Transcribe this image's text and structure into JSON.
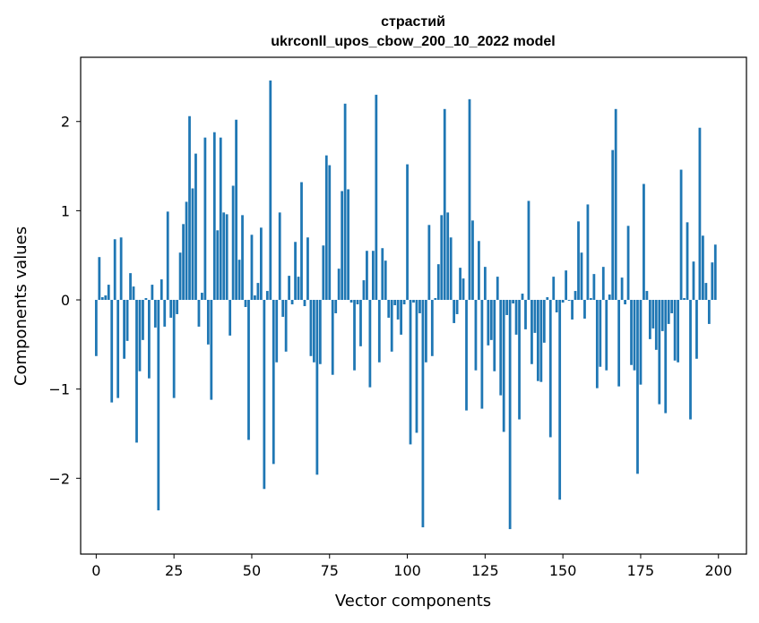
{
  "chart_data": {
    "type": "bar",
    "title": "страстий",
    "subtitle": "ukrconll_upos_cbow_200_10_2022 model",
    "xlabel": "Vector components",
    "ylabel": "Components values",
    "xlim": [
      -5,
      209
    ],
    "ylim": [
      -2.85,
      2.72
    ],
    "xticks": [
      0,
      25,
      50,
      75,
      100,
      125,
      150,
      175,
      200
    ],
    "yticks": [
      -2,
      -1,
      0,
      1,
      2
    ],
    "ytick_labels": [
      "−2",
      "−1",
      "0",
      "1",
      "2"
    ],
    "bar_color": "#1f77b4",
    "x": [
      0,
      1,
      2,
      3,
      4,
      5,
      6,
      7,
      8,
      9,
      10,
      11,
      12,
      13,
      14,
      15,
      16,
      17,
      18,
      19,
      20,
      21,
      22,
      23,
      24,
      25,
      26,
      27,
      28,
      29,
      30,
      31,
      32,
      33,
      34,
      35,
      36,
      37,
      38,
      39,
      40,
      41,
      42,
      43,
      44,
      45,
      46,
      47,
      48,
      49,
      50,
      51,
      52,
      53,
      54,
      55,
      56,
      57,
      58,
      59,
      60,
      61,
      62,
      63,
      64,
      65,
      66,
      67,
      68,
      69,
      70,
      71,
      72,
      73,
      74,
      75,
      76,
      77,
      78,
      79,
      80,
      81,
      82,
      83,
      84,
      85,
      86,
      87,
      88,
      89,
      90,
      91,
      92,
      93,
      94,
      95,
      96,
      97,
      98,
      99,
      100,
      101,
      102,
      103,
      104,
      105,
      106,
      107,
      108,
      109,
      110,
      111,
      112,
      113,
      114,
      115,
      116,
      117,
      118,
      119,
      120,
      121,
      122,
      123,
      124,
      125,
      126,
      127,
      128,
      129,
      130,
      131,
      132,
      133,
      134,
      135,
      136,
      137,
      138,
      139,
      140,
      141,
      142,
      143,
      144,
      145,
      146,
      147,
      148,
      149,
      150,
      151,
      152,
      153,
      154,
      155,
      156,
      157,
      158,
      159,
      160,
      161,
      162,
      163,
      164,
      165,
      166,
      167,
      168,
      169,
      170,
      171,
      172,
      173,
      174,
      175,
      176,
      177,
      178,
      179,
      180,
      181,
      182,
      183,
      184,
      185,
      186,
      187,
      188,
      189,
      190,
      191,
      192,
      193,
      194,
      195,
      196,
      197,
      198,
      199
    ],
    "values": [
      -0.63,
      0.48,
      0.03,
      0.05,
      0.17,
      -1.15,
      0.68,
      -1.1,
      0.7,
      -0.66,
      -0.46,
      0.3,
      0.15,
      -1.6,
      -0.8,
      -0.45,
      0.02,
      -0.88,
      0.17,
      -0.31,
      -2.36,
      0.23,
      -0.3,
      0.99,
      -0.2,
      -1.1,
      -0.16,
      0.53,
      0.85,
      1.1,
      2.06,
      1.25,
      1.64,
      -0.3,
      0.08,
      1.82,
      -0.5,
      -1.12,
      1.88,
      0.78,
      1.82,
      0.98,
      0.96,
      -0.4,
      1.28,
      2.02,
      0.45,
      0.95,
      -0.08,
      -1.57,
      0.73,
      0.05,
      0.19,
      0.81,
      -2.12,
      0.1,
      2.46,
      -1.84,
      -0.7,
      0.98,
      -0.19,
      -0.58,
      0.27,
      -0.05,
      0.65,
      0.26,
      1.32,
      -0.07,
      0.7,
      -0.63,
      -0.7,
      -1.96,
      -0.72,
      0.61,
      1.62,
      1.51,
      -0.84,
      -0.15,
      0.35,
      1.22,
      2.2,
      1.24,
      -0.03,
      -0.79,
      -0.05,
      -0.52,
      0.22,
      0.55,
      -0.98,
      0.55,
      2.3,
      -0.7,
      0.58,
      0.44,
      -0.2,
      -0.58,
      -0.06,
      -0.22,
      -0.39,
      -0.05,
      1.52,
      -1.62,
      -0.03,
      -1.49,
      -0.15,
      -2.55,
      -0.7,
      0.84,
      -0.63,
      0.02,
      0.4,
      0.95,
      2.14,
      0.98,
      0.7,
      -0.26,
      -0.16,
      0.36,
      0.24,
      -1.24,
      2.25,
      0.89,
      -0.79,
      0.66,
      -1.22,
      0.37,
      -0.51,
      -0.45,
      -0.8,
      0.26,
      -1.07,
      -1.48,
      -0.17,
      -2.57,
      -0.04,
      -0.39,
      -1.34,
      0.07,
      -0.33,
      1.11,
      -0.72,
      -0.37,
      -0.91,
      -0.92,
      -0.48,
      0.03,
      -1.54,
      0.26,
      -0.14,
      -2.24,
      -0.03,
      0.33,
      -0.01,
      -0.22,
      0.1,
      0.88,
      0.53,
      -0.21,
      1.07,
      0.02,
      0.29,
      -0.99,
      -0.75,
      0.37,
      -0.79,
      0.06,
      1.68,
      2.14,
      -0.97,
      0.25,
      -0.05,
      0.83,
      -0.73,
      -0.79,
      -1.95,
      -0.95,
      1.3,
      0.1,
      -0.44,
      -0.32,
      -0.56,
      -1.17,
      -0.35,
      -1.27,
      -0.27,
      -0.15,
      -0.68,
      -0.7,
      1.46,
      0.02,
      0.87,
      -1.34,
      0.43,
      -0.66,
      1.93,
      0.72,
      0.19,
      -0.27,
      0.42,
      0.62
    ]
  }
}
